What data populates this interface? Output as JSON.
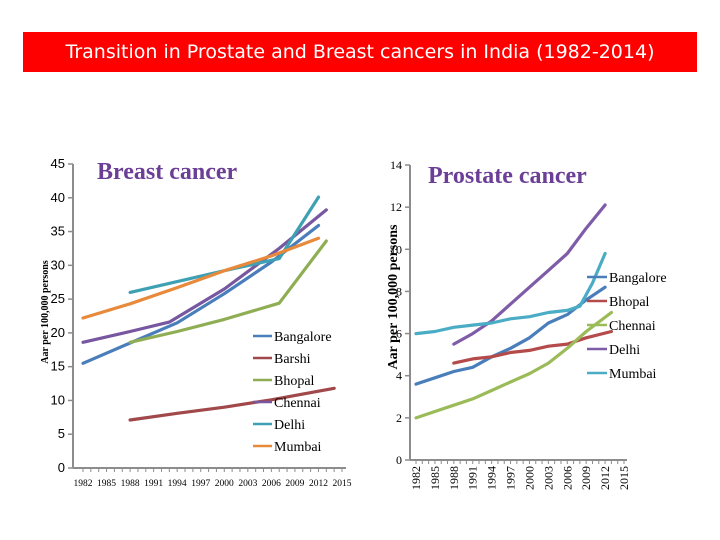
{
  "page_title": "Transition in Prostate and Breast cancers in India (1982-2014)",
  "chart_data": [
    {
      "type": "line",
      "title": "Breast cancer",
      "xlabel": "",
      "ylabel": "Aar per 100,000 persons",
      "xlim": [
        1982,
        2015
      ],
      "ylim": [
        0,
        45
      ],
      "yticks": [
        0,
        5,
        10,
        15,
        20,
        25,
        30,
        35,
        40,
        45
      ],
      "xticks": [
        "1982",
        "1985",
        "1988",
        "1991",
        "1994",
        "1997",
        "2000",
        "2003",
        "2006",
        "2009",
        "2012",
        "2015"
      ],
      "grid": false,
      "legend_position": "bottom-right",
      "series": [
        {
          "name": "Bangalore",
          "color": "#4a7ebb",
          "points": [
            [
              1982,
              15.5
            ],
            [
              1988,
              18.5
            ],
            [
              1994,
              21.5
            ],
            [
              2000,
              25.8
            ],
            [
              2006,
              30.5
            ],
            [
              2012,
              35.9
            ]
          ]
        },
        {
          "name": "Barshi",
          "color": "#a0484a",
          "points": [
            [
              1988,
              7.1
            ],
            [
              1994,
              8.1
            ],
            [
              2000,
              9.0
            ],
            [
              2006,
              10.1
            ],
            [
              2014,
              11.8
            ]
          ]
        },
        {
          "name": "Bhopal",
          "color": "#8fae54",
          "points": [
            [
              1988,
              18.6
            ],
            [
              1994,
              20.2
            ],
            [
              2000,
              22.0
            ],
            [
              2007,
              24.4
            ],
            [
              2013,
              33.6
            ]
          ]
        },
        {
          "name": "Chennai",
          "color": "#7657a0",
          "points": [
            [
              1982,
              18.6
            ],
            [
              1988,
              20.2
            ],
            [
              1993,
              21.6
            ],
            [
              2000,
              26.5
            ],
            [
              2007,
              32.5
            ],
            [
              2013,
              38.2
            ]
          ]
        },
        {
          "name": "Delhi",
          "color": "#3fa0b4",
          "points": [
            [
              1988,
              26.0
            ],
            [
              2000,
              29.2
            ],
            [
              2007,
              31.0
            ],
            [
              2012,
              40.1
            ]
          ]
        },
        {
          "name": "Mumbai",
          "color": "#e88a3c",
          "points": [
            [
              1982,
              22.2
            ],
            [
              1988,
              24.3
            ],
            [
              1994,
              26.7
            ],
            [
              2000,
              29.2
            ],
            [
              2006,
              31.4
            ],
            [
              2012,
              34.0
            ]
          ]
        }
      ]
    },
    {
      "type": "line",
      "title": "Prostate cancer",
      "xlabel": "",
      "ylabel": "Aar per 100,000 persons",
      "xlim": [
        1982,
        2015
      ],
      "ylim": [
        0,
        14
      ],
      "yticks": [
        0,
        2,
        4,
        6,
        8,
        10,
        12,
        14
      ],
      "xticks": [
        "1982",
        "1985",
        "1988",
        "1991",
        "1994",
        "1997",
        "2000",
        "2003",
        "2006",
        "2009",
        "2012",
        "2015"
      ],
      "grid": false,
      "legend_position": "right",
      "series": [
        {
          "name": "Bangalore",
          "color": "#4a7ebb",
          "points": [
            [
              1982,
              3.6
            ],
            [
              1985,
              3.9
            ],
            [
              1988,
              4.2
            ],
            [
              1991,
              4.4
            ],
            [
              1994,
              4.9
            ],
            [
              1997,
              5.3
            ],
            [
              2000,
              5.8
            ],
            [
              2003,
              6.5
            ],
            [
              2006,
              6.9
            ],
            [
              2009,
              7.6
            ],
            [
              2012,
              8.2
            ]
          ]
        },
        {
          "name": "Bhopal",
          "color": "#b54a4a",
          "points": [
            [
              1988,
              4.6
            ],
            [
              1991,
              4.8
            ],
            [
              1994,
              4.9
            ],
            [
              1997,
              5.1
            ],
            [
              2000,
              5.2
            ],
            [
              2003,
              5.4
            ],
            [
              2006,
              5.5
            ],
            [
              2009,
              5.8
            ],
            [
              2013,
              6.1
            ]
          ]
        },
        {
          "name": "Chennai",
          "color": "#9bbb59",
          "points": [
            [
              1982,
              2.0
            ],
            [
              1985,
              2.3
            ],
            [
              1988,
              2.6
            ],
            [
              1991,
              2.9
            ],
            [
              1994,
              3.3
            ],
            [
              1997,
              3.7
            ],
            [
              2000,
              4.1
            ],
            [
              2003,
              4.6
            ],
            [
              2006,
              5.3
            ],
            [
              2009,
              6.1
            ],
            [
              2013,
              7.0
            ]
          ]
        },
        {
          "name": "Delhi",
          "color": "#7f5ca8",
          "points": [
            [
              1988,
              5.5
            ],
            [
              1991,
              6.0
            ],
            [
              1994,
              6.6
            ],
            [
              1997,
              7.4
            ],
            [
              2000,
              8.2
            ],
            [
              2003,
              9.0
            ],
            [
              2006,
              9.8
            ],
            [
              2009,
              11.0
            ],
            [
              2012,
              12.1
            ]
          ]
        },
        {
          "name": "Mumbai",
          "color": "#4bacc6",
          "points": [
            [
              1982,
              6.0
            ],
            [
              1985,
              6.1
            ],
            [
              1988,
              6.3
            ],
            [
              1991,
              6.4
            ],
            [
              1994,
              6.5
            ],
            [
              1997,
              6.7
            ],
            [
              2000,
              6.8
            ],
            [
              2003,
              7.0
            ],
            [
              2006,
              7.1
            ],
            [
              2008,
              7.3
            ],
            [
              2010,
              8.4
            ],
            [
              2012,
              9.8
            ]
          ]
        }
      ]
    }
  ]
}
